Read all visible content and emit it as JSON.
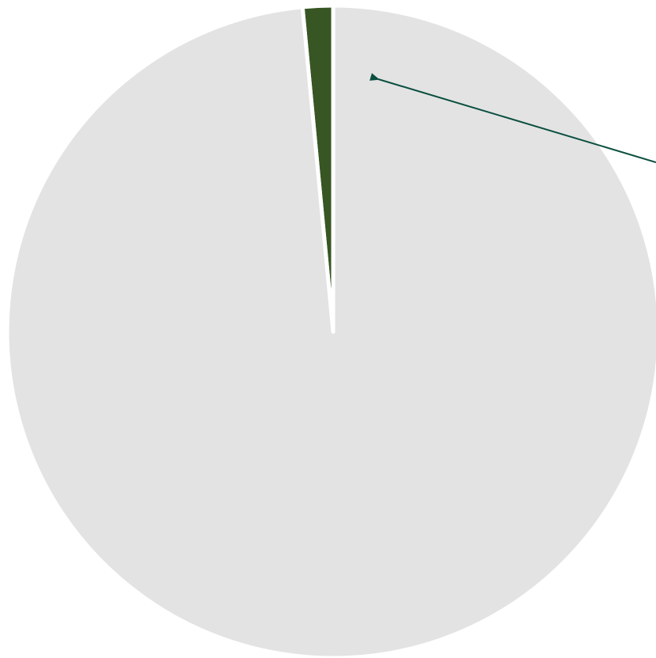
{
  "chart_data": {
    "type": "pie",
    "title": "",
    "slices": [
      {
        "value": 1.5,
        "color": "#375623"
      },
      {
        "value": 98.5,
        "color": "#e3e3e3"
      }
    ],
    "annotations": [
      {
        "type": "arrow",
        "points_to_slice": 0,
        "color": "#0b4f3f"
      }
    ],
    "legend": "none"
  }
}
